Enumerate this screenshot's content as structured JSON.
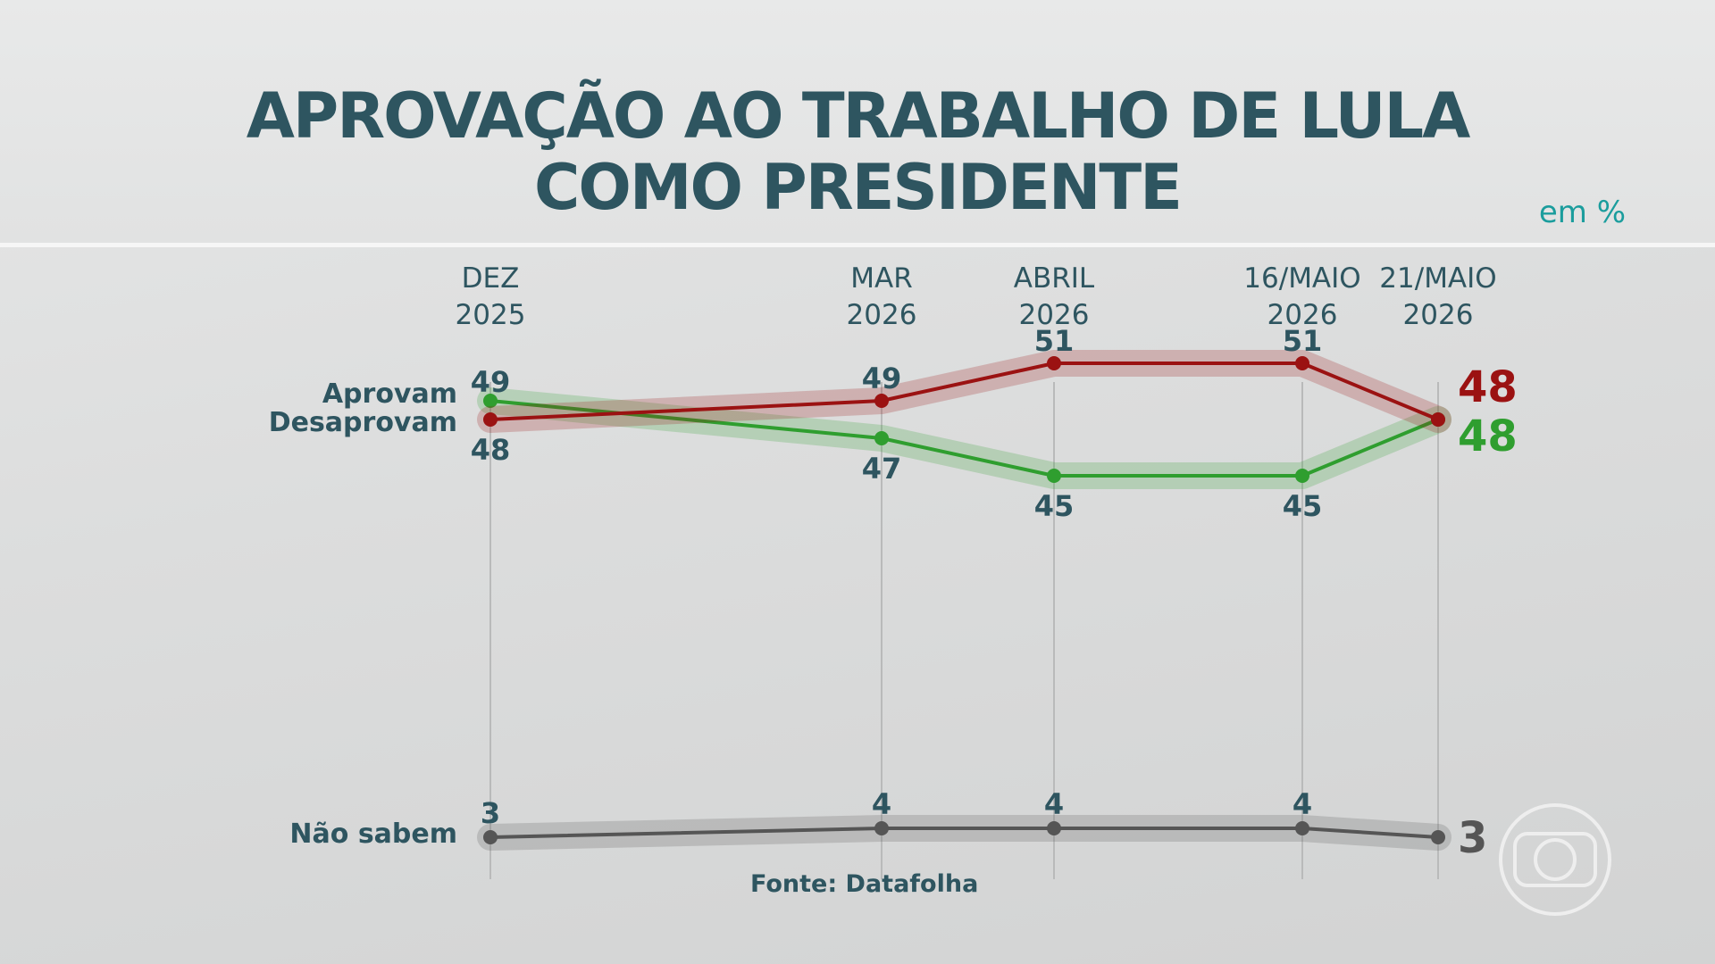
{
  "title_lines": [
    "APROVAÇÃO AO TRABALHO DE LULA",
    "COMO PRESIDENTE"
  ],
  "unit_label": "em %",
  "series_labels": {
    "approve": "Aprovam",
    "disapprove": "Desaprovam",
    "dont_know": "Não sabem"
  },
  "source": "Fonte: Datafolha",
  "colors": {
    "title": "#2e5560",
    "approve": "#2f9e2f",
    "disapprove": "#9b1212",
    "dont_know": "#555555",
    "unit": "#1b9d9d"
  },
  "chart_data": {
    "type": "line",
    "categories": [
      [
        "DEZ",
        "2025"
      ],
      [
        "MAR",
        "2026"
      ],
      [
        "ABRIL",
        "2026"
      ],
      [
        "16/MAIO",
        "2026"
      ],
      [
        "21/MAIO",
        "2026"
      ]
    ],
    "series": [
      {
        "name": "Aprovam",
        "values": [
          49,
          47,
          45,
          45,
          48
        ],
        "color": "#2f9e2f"
      },
      {
        "name": "Desaprovam",
        "values": [
          48,
          49,
          51,
          51,
          48
        ],
        "color": "#9b1212"
      },
      {
        "name": "Não sabem",
        "values": [
          3,
          4,
          4,
          4,
          3
        ],
        "color": "#555555"
      }
    ],
    "value_labels": {
      "Aprovam": [
        "49",
        "47",
        "45",
        "45",
        "48"
      ],
      "Desaprovam": [
        "48",
        "49",
        "51",
        "51",
        "48"
      ],
      "Não sabem": [
        "3",
        "4",
        "4",
        "4",
        "3"
      ]
    },
    "grid": "vertical"
  }
}
